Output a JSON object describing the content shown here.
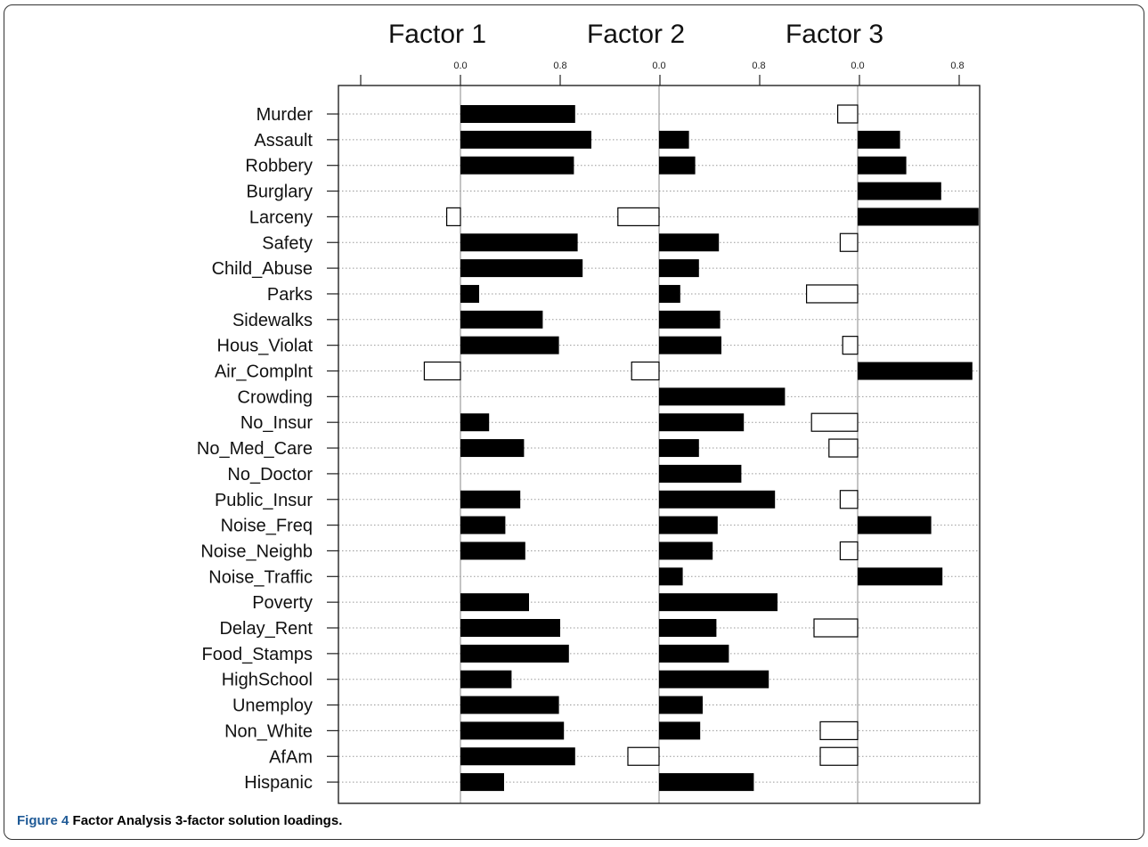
{
  "figure": {
    "label": "Figure 4",
    "caption": "Factor Analysis 3-factor solution loadings."
  },
  "chart_data": {
    "type": "bar",
    "orientation": "horizontal",
    "panels": [
      "Factor 1",
      "Factor 2",
      "Factor 3"
    ],
    "tick_labels": [
      "0.0",
      "0.8"
    ],
    "xlim": [
      -0.8,
      1.0
    ],
    "grid": "horizontal dotted lines at each variable",
    "encoding": {
      "positive": "filled black bar",
      "negative": "hollow bar with black outline"
    },
    "colors": {
      "positive_fill": "#000000",
      "negative_fill": "#ffffff",
      "outline": "#000000",
      "grid": "#999999"
    },
    "categories": [
      "Murder",
      "Assault",
      "Robbery",
      "Burglary",
      "Larceny",
      "Safety",
      "Child_Abuse",
      "Parks",
      "Sidewalks",
      "Hous_Violat",
      "Air_Complnt",
      "Crowding",
      "No_Insur",
      "No_Med_Care",
      "No_Doctor",
      "Public_Insur",
      "Noise_Freq",
      "Noise_Neighb",
      "Noise_Traffic",
      "Poverty",
      "Delay_Rent",
      "Food_Stamps",
      "HighSchool",
      "Unemploy",
      "Non_White",
      "AfAm",
      "Hispanic"
    ],
    "series": [
      {
        "name": "Factor 1",
        "values": [
          0.92,
          1.05,
          0.91,
          null,
          -0.11,
          0.94,
          0.98,
          0.15,
          0.66,
          0.79,
          -0.29,
          null,
          0.23,
          0.51,
          null,
          0.48,
          0.36,
          0.52,
          null,
          0.55,
          0.8,
          0.87,
          0.41,
          0.79,
          0.83,
          0.92,
          0.35
        ]
      },
      {
        "name": "Factor 2",
        "values": [
          null,
          0.24,
          0.29,
          null,
          -0.33,
          0.48,
          0.32,
          0.17,
          0.49,
          0.5,
          -0.22,
          1.01,
          0.68,
          0.32,
          0.66,
          0.93,
          0.47,
          0.43,
          0.19,
          0.95,
          0.46,
          0.56,
          0.88,
          0.35,
          0.33,
          -0.25,
          0.76
        ]
      },
      {
        "name": "Factor 3",
        "values": [
          -0.16,
          0.34,
          0.39,
          0.67,
          0.97,
          -0.14,
          null,
          -0.41,
          null,
          -0.12,
          0.92,
          null,
          -0.37,
          -0.23,
          null,
          -0.14,
          0.59,
          -0.14,
          0.68,
          null,
          -0.35,
          null,
          null,
          null,
          -0.3,
          -0.3,
          null
        ]
      }
    ]
  }
}
